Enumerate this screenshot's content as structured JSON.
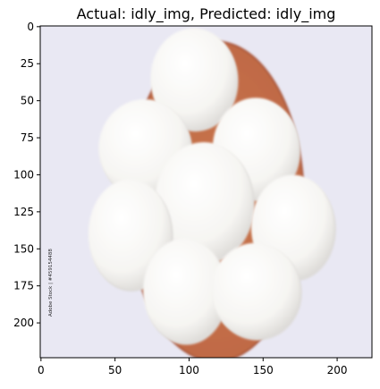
{
  "chart_data": {
    "type": "image",
    "title": "Actual: idly_img, Predicted: idly_img",
    "xlim": [
      0,
      224
    ],
    "ylim": [
      224,
      0
    ],
    "xticks": [
      0,
      50,
      100,
      150,
      200
    ],
    "yticks": [
      0,
      25,
      50,
      75,
      100,
      125,
      150,
      175,
      200
    ],
    "grid": false,
    "colors": {
      "background": "#e9e8f3",
      "plate": "#c4704a",
      "plate_rim": "#a8553a",
      "idly": "#f7f6f3",
      "idly_shadow": "#dedcd9"
    },
    "image_content": {
      "plate": {
        "center": [
          118,
          118
        ],
        "radii": [
          108,
          96
        ]
      },
      "idlis": [
        {
          "name": "top",
          "cx": 103,
          "cy": 35,
          "rx": 29,
          "ry": 34
        },
        {
          "name": "upper-left",
          "cx": 70,
          "cy": 82,
          "rx": 31,
          "ry": 33
        },
        {
          "name": "upper-right",
          "cx": 145,
          "cy": 82,
          "rx": 29,
          "ry": 34
        },
        {
          "name": "center",
          "cx": 110,
          "cy": 118,
          "rx": 33,
          "ry": 40
        },
        {
          "name": "left",
          "cx": 60,
          "cy": 140,
          "rx": 28,
          "ry": 37
        },
        {
          "name": "right",
          "cx": 170,
          "cy": 135,
          "rx": 28,
          "ry": 35
        },
        {
          "name": "bottom-left",
          "cx": 97,
          "cy": 178,
          "rx": 28,
          "ry": 35
        },
        {
          "name": "bottom-right",
          "cx": 145,
          "cy": 178,
          "rx": 30,
          "ry": 32
        }
      ]
    }
  },
  "watermark": "Adobe Stock | #459154488"
}
